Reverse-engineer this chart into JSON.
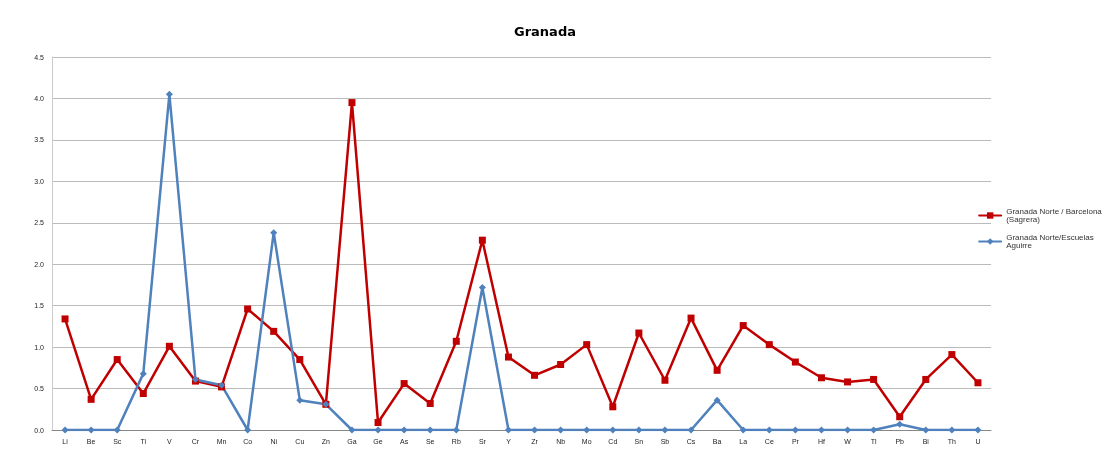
{
  "chart_data": {
    "type": "line",
    "title": "Granada",
    "categories": [
      "Li",
      "Be",
      "Sc",
      "Ti",
      "V",
      "Cr",
      "Mn",
      "Co",
      "Ni",
      "Cu",
      "Zn",
      "Ga",
      "Ge",
      "As",
      "Se",
      "Rb",
      "Sr",
      "Y",
      "Zr",
      "Nb",
      "Mo",
      "Cd",
      "Sn",
      "Sb",
      "Cs",
      "Ba",
      "La",
      "Ce",
      "Pr",
      "Hf",
      "W",
      "Tl",
      "Pb",
      "Bi",
      "Th",
      "U"
    ],
    "series": [
      {
        "name": "Granada Norte / Barcelona (Sagrera)",
        "color": "#c00000",
        "marker": "square",
        "values": [
          1.34,
          0.37,
          0.85,
          0.44,
          1.01,
          0.59,
          0.52,
          1.46,
          1.19,
          0.85,
          0.31,
          3.95,
          0.09,
          0.56,
          0.32,
          1.07,
          2.29,
          0.88,
          0.66,
          0.79,
          1.03,
          0.28,
          1.17,
          0.6,
          1.35,
          0.72,
          1.26,
          1.03,
          0.82,
          0.63,
          0.58,
          0.61,
          0.16,
          0.61,
          0.91,
          0.57
        ]
      },
      {
        "name": "Granada Norte/Escuelas Aguirre",
        "color": "#4f81bd",
        "marker": "diamond",
        "values": [
          0,
          0,
          0,
          0.68,
          4.05,
          0.61,
          0.54,
          0,
          2.38,
          0.36,
          0.31,
          0,
          0,
          0,
          0,
          0,
          1.72,
          0,
          0,
          0,
          0,
          0,
          0,
          0,
          0,
          0.36,
          0,
          0,
          0,
          0,
          0,
          0,
          0.07,
          0,
          0,
          0
        ]
      }
    ],
    "ylim": [
      0,
      4.5
    ],
    "yticks": [
      {
        "value": 0,
        "label": "0.0"
      },
      {
        "value": 0.5,
        "label": "0.5"
      },
      {
        "value": 1,
        "label": "1.0"
      },
      {
        "value": 1.5,
        "label": "1.5"
      },
      {
        "value": 2,
        "label": "2.0"
      },
      {
        "value": 2.5,
        "label": "2.5"
      },
      {
        "value": 3,
        "label": "3.0"
      },
      {
        "value": 3.5,
        "label": "3.5"
      },
      {
        "value": 4,
        "label": "4.0"
      },
      {
        "value": 4.5,
        "label": "4.5"
      }
    ],
    "grid": "y",
    "legend": "right",
    "line_style": "solid"
  }
}
